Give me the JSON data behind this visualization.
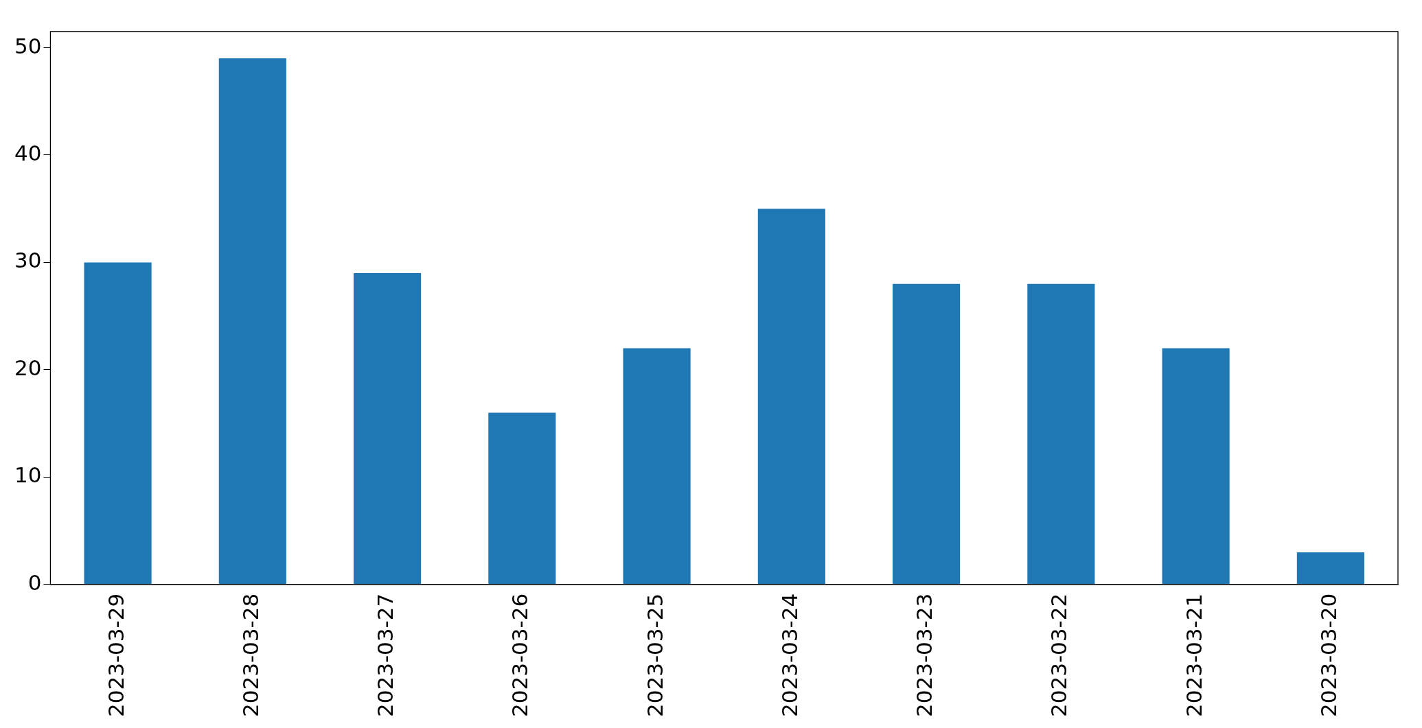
{
  "chart_data": {
    "type": "bar",
    "categories": [
      "2023-03-29",
      "2023-03-28",
      "2023-03-27",
      "2023-03-26",
      "2023-03-25",
      "2023-03-24",
      "2023-03-23",
      "2023-03-22",
      "2023-03-21",
      "2023-03-20"
    ],
    "values": [
      30,
      49,
      29,
      16,
      22,
      35,
      28,
      28,
      22,
      3
    ],
    "color": "#1f77b4",
    "ylim": [
      0,
      51.5
    ],
    "yticks": [
      0,
      10,
      20,
      30,
      40,
      50
    ],
    "grid": false,
    "legend": false
  }
}
